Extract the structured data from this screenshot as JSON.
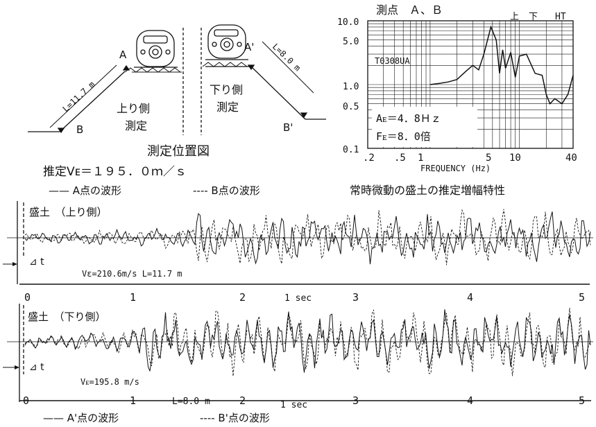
{
  "diagram": {
    "label_A": "A",
    "label_B": "B",
    "label_A_prime": "A'",
    "label_B_prime": "B'",
    "len_up": "L=11.7 m",
    "len_down": "L=8.0 m",
    "side_up": "上り側",
    "side_down": "下り側",
    "measure": "測定",
    "caption": "測定位置図"
  },
  "estimate": {
    "ve_text": "推定Vᴇ＝１９５．０ｍ／ｓ",
    "legend_a": "—— A点の波形",
    "legend_b": "---- B点の波形"
  },
  "spectrum": {
    "title": "測点　Ａ、Ｂ",
    "code": "T0308UA",
    "marks": [
      "上",
      "下",
      "HT"
    ],
    "ae": "Aᴇ＝4．8Ｈｚ",
    "fe": "Fᴇ＝8．0倍",
    "xlabel": "FREQUENCY (Hz)",
    "caption": "常時微動の盛土の推定増幅特性",
    "xticks": [
      ".2",
      ".5",
      "1",
      "5",
      "10",
      "40"
    ],
    "yticks": [
      "10.0",
      "5.0",
      "1.0",
      "0.5",
      "0.1"
    ]
  },
  "wave1": {
    "title": "盛土　（上り側）",
    "dt": "⊿ t",
    "info": "Vε=210.6m/s  L=11.7 m",
    "sec": "1 sec",
    "ticks": [
      "0",
      "1",
      "2",
      "3",
      "4",
      "5"
    ]
  },
  "wave2": {
    "title": "盛土　（下り側）",
    "dt": "⊿ t",
    "info": "Vᴇ=195.8 m/s",
    "len": "L=8.0 m",
    "sec": "1 sec",
    "ticks": [
      "0",
      "1",
      "2",
      "3",
      "4",
      "5"
    ],
    "legend_a": "—— A'点の波形",
    "legend_b": "---- B'点の波形"
  },
  "chart_data": {
    "type": "line",
    "title": "常時微動の盛土の推定増幅特性",
    "xlabel": "FREQUENCY (Hz)",
    "xscale": "log",
    "yscale": "log",
    "xlim": [
      0.2,
      40
    ],
    "ylim": [
      0.1,
      10
    ],
    "series": [
      {
        "x": [
          1.0,
          1.3,
          1.6,
          2.0,
          2.5,
          3.0,
          3.5,
          4.0,
          4.8,
          5.5,
          6.0,
          6.5,
          7.0,
          8.0,
          9.0,
          10,
          12,
          15,
          18,
          20,
          22,
          25,
          30,
          35,
          40
        ],
        "y": [
          1.0,
          1.05,
          1.1,
          1.2,
          1.6,
          2.0,
          1.7,
          3.0,
          8.0,
          5.0,
          1.5,
          3.5,
          1.8,
          3.2,
          1.3,
          2.8,
          3.0,
          1.5,
          1.4,
          0.7,
          0.5,
          0.6,
          0.5,
          0.7,
          1.4
        ]
      }
    ]
  }
}
